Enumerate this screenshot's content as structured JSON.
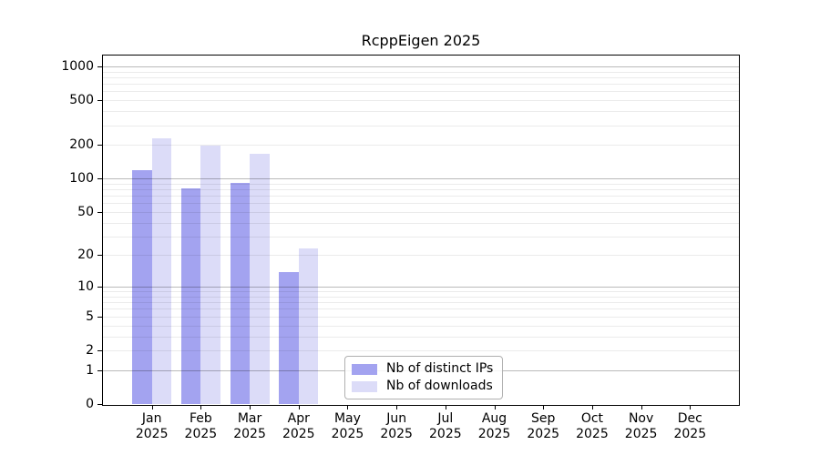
{
  "title": "RcppEigen 2025",
  "chart_data": {
    "type": "bar",
    "title": "RcppEigen 2025",
    "xlabel": "",
    "ylabel": "",
    "categories": [
      "Jan",
      "Feb",
      "Mar",
      "Apr",
      "May",
      "Jun",
      "Jul",
      "Aug",
      "Sep",
      "Oct",
      "Nov",
      "Dec"
    ],
    "year_label": "2025",
    "series": [
      {
        "name": "Nb of distinct IPs",
        "color": "#a3a3f0",
        "values": [
          118,
          81,
          92,
          14,
          0,
          0,
          0,
          0,
          0,
          0,
          0,
          0
        ]
      },
      {
        "name": "Nb of downloads",
        "color": "#dcdcf8",
        "values": [
          228,
          196,
          166,
          23,
          0,
          0,
          0,
          0,
          0,
          0,
          0,
          0
        ]
      }
    ],
    "yscale": "log1p",
    "ylim": [
      0,
      1250
    ],
    "y_ticks": [
      0,
      1,
      2,
      5,
      10,
      20,
      50,
      100,
      200,
      500,
      1000
    ],
    "y_major_gridlines": [
      1,
      10,
      100,
      1000
    ],
    "y_minor_gridlines": [
      2,
      3,
      4,
      5,
      6,
      7,
      8,
      9,
      20,
      30,
      40,
      50,
      60,
      70,
      80,
      90,
      200,
      300,
      400,
      500,
      600,
      700,
      800,
      900
    ],
    "grid": "both",
    "legend_position": "lower center"
  },
  "legend": {
    "items": [
      {
        "label": "Nb of distinct IPs",
        "color": "#a3a3f0"
      },
      {
        "label": "Nb of downloads",
        "color": "#dcdcf8"
      }
    ]
  },
  "colors": {
    "bar_dark": "#a3a3f0",
    "bar_light": "#dcdcf8",
    "spine": "#000000",
    "text": "#000000"
  }
}
